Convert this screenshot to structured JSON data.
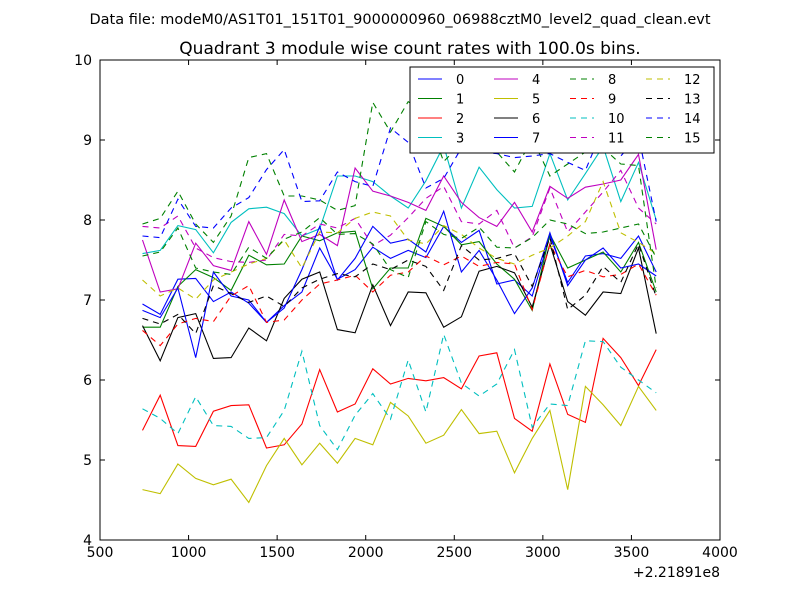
{
  "figure": {
    "suptitle": "Data file: modeM0/AS1T01_151T01_9000000960_06988cztM0_level2_quad_clean.evt"
  },
  "chart_data": {
    "type": "line",
    "title": "Quadrant 3 module wise count rates with 100.0s bins.",
    "xlabel": "",
    "ylabel": "",
    "x_offset_label": "+2.21891e8",
    "xlim": [
      500,
      4000
    ],
    "ylim": [
      4,
      10
    ],
    "xticks": [
      500,
      1000,
      1500,
      2000,
      2500,
      3000,
      3500,
      4000
    ],
    "yticks": [
      4,
      5,
      6,
      7,
      8,
      9,
      10
    ],
    "grid": false,
    "legend": {
      "placement": "top-right",
      "columns": 4
    },
    "x": [
      740,
      840,
      940,
      1040,
      1140,
      1240,
      1340,
      1440,
      1540,
      1640,
      1740,
      1840,
      1940,
      2040,
      2140,
      2240,
      2340,
      2440,
      2540,
      2640,
      2740,
      2840,
      2940,
      3040,
      3140,
      3240,
      3340,
      3440,
      3540,
      3640
    ],
    "series": [
      {
        "name": "0",
        "color": "#0000ff",
        "dash": "solid",
        "values": [
          6.95,
          6.82,
          7.26,
          7.27,
          6.98,
          7.1,
          6.96,
          6.72,
          6.93,
          7.1,
          7.65,
          7.26,
          7.38,
          7.66,
          7.52,
          7.62,
          7.53,
          7.92,
          7.72,
          7.87,
          7.2,
          7.25,
          7.05,
          7.8,
          7.22,
          7.55,
          7.58,
          7.52,
          7.8,
          7.35
        ]
      },
      {
        "name": "1",
        "color": "#008000",
        "dash": "solid",
        "values": [
          6.66,
          6.66,
          7.17,
          7.38,
          7.28,
          7.12,
          7.56,
          7.44,
          7.45,
          7.8,
          7.74,
          7.84,
          7.86,
          7.14,
          7.4,
          7.4,
          8.02,
          7.92,
          7.69,
          7.73,
          7.45,
          7.26,
          6.87,
          7.82,
          7.4,
          7.5,
          7.6,
          7.35,
          7.72,
          7.1
        ]
      },
      {
        "name": "2",
        "color": "#ff0000",
        "dash": "solid",
        "values": [
          5.37,
          5.81,
          5.18,
          5.17,
          5.61,
          5.68,
          5.69,
          5.15,
          5.19,
          5.45,
          6.13,
          5.6,
          5.7,
          6.14,
          5.95,
          6.02,
          5.99,
          6.03,
          5.89,
          6.3,
          6.34,
          5.52,
          5.36,
          6.2,
          5.57,
          5.47,
          6.52,
          6.28,
          5.93,
          6.38
        ]
      },
      {
        "name": "3",
        "color": "#00bfbf",
        "dash": "solid",
        "values": [
          7.58,
          7.62,
          7.93,
          7.88,
          7.59,
          7.97,
          8.14,
          8.16,
          8.08,
          7.8,
          7.89,
          8.55,
          8.55,
          8.48,
          8.3,
          8.15,
          8.49,
          8.93,
          8.15,
          8.66,
          8.38,
          8.15,
          8.17,
          8.83,
          8.25,
          8.58,
          8.92,
          8.23,
          8.72,
          8.0
        ]
      },
      {
        "name": "4",
        "color": "#bf00bf",
        "dash": "solid",
        "values": [
          7.75,
          7.1,
          7.14,
          7.71,
          7.43,
          7.37,
          7.98,
          7.57,
          8.25,
          7.73,
          7.82,
          7.68,
          8.65,
          8.36,
          8.3,
          8.22,
          8.12,
          8.55,
          8.22,
          8.03,
          7.92,
          8.22,
          7.85,
          8.42,
          8.27,
          8.41,
          8.45,
          8.5,
          8.82,
          7.63
        ]
      },
      {
        "name": "5",
        "color": "#bfbf00",
        "dash": "solid",
        "values": [
          4.63,
          4.58,
          4.95,
          4.77,
          4.69,
          4.76,
          4.47,
          4.93,
          5.27,
          4.94,
          5.21,
          4.96,
          5.27,
          5.19,
          5.72,
          5.55,
          5.21,
          5.31,
          5.63,
          5.33,
          5.36,
          4.84,
          5.27,
          5.62,
          4.63,
          5.92,
          5.69,
          5.43,
          5.92,
          5.62
        ]
      },
      {
        "name": "6",
        "color": "#000000",
        "dash": "solid",
        "values": [
          6.68,
          6.24,
          6.78,
          6.83,
          6.27,
          6.28,
          6.65,
          6.49,
          7.02,
          7.26,
          7.35,
          6.63,
          6.59,
          7.19,
          6.68,
          7.1,
          7.09,
          6.66,
          6.79,
          7.36,
          7.42,
          7.34,
          6.91,
          7.7,
          6.98,
          6.81,
          7.1,
          7.08,
          7.65,
          6.58
        ]
      },
      {
        "name": "7",
        "color": "#0000ff",
        "dash": "solid",
        "values": [
          6.87,
          6.78,
          7.15,
          6.28,
          7.35,
          7.05,
          7.0,
          6.72,
          6.9,
          7.38,
          7.92,
          7.25,
          7.52,
          7.92,
          7.71,
          7.76,
          7.6,
          8.11,
          7.35,
          7.62,
          7.25,
          6.83,
          7.15,
          7.84,
          7.18,
          7.5,
          7.65,
          7.4,
          7.45,
          7.3
        ]
      },
      {
        "name": "8",
        "color": "#008000",
        "dash": "dash",
        "values": [
          7.95,
          8.02,
          8.36,
          7.95,
          7.72,
          8.05,
          8.78,
          8.83,
          8.3,
          8.3,
          8.25,
          8.12,
          8.18,
          9.47,
          9.1,
          9.48,
          9.33,
          8.73,
          8.96,
          9.13,
          8.85,
          8.6,
          9.02,
          8.55,
          8.7,
          8.85,
          8.9,
          8.7,
          8.68,
          7.15
        ]
      },
      {
        "name": "9",
        "color": "#ff0000",
        "dash": "dash",
        "values": [
          6.62,
          6.43,
          6.7,
          6.77,
          6.73,
          7.05,
          7.18,
          6.72,
          6.75,
          7.0,
          7.2,
          7.25,
          7.31,
          7.1,
          7.31,
          7.35,
          7.55,
          7.44,
          7.55,
          7.42,
          7.47,
          7.45,
          6.88,
          7.7,
          7.29,
          7.37,
          7.29,
          7.32,
          7.45,
          7.06
        ]
      },
      {
        "name": "10",
        "color": "#00bfbf",
        "dash": "dash",
        "values": [
          5.64,
          5.52,
          5.33,
          5.79,
          5.43,
          5.42,
          5.27,
          5.28,
          5.62,
          6.36,
          5.43,
          5.13,
          5.56,
          5.83,
          5.51,
          6.25,
          5.6,
          6.57,
          5.96,
          5.8,
          5.95,
          6.38,
          5.41,
          5.7,
          5.68,
          6.49,
          6.48,
          6.16,
          6.0,
          5.84
        ]
      },
      {
        "name": "11",
        "color": "#bf00bf",
        "dash": "dash",
        "values": [
          7.92,
          7.9,
          8.05,
          7.65,
          7.53,
          7.48,
          7.47,
          7.5,
          7.82,
          7.8,
          7.95,
          7.9,
          8.02,
          7.68,
          7.81,
          8.03,
          8.27,
          8.42,
          7.98,
          7.95,
          8.12,
          7.65,
          7.79,
          8.4,
          7.85,
          8.1,
          8.35,
          8.62,
          8.15,
          7.95
        ]
      },
      {
        "name": "12",
        "color": "#bfbf00",
        "dash": "dash",
        "values": [
          7.25,
          7.05,
          7.15,
          7.01,
          7.25,
          7.35,
          7.45,
          7.52,
          7.75,
          7.4,
          7.85,
          7.84,
          8.02,
          8.1,
          8.05,
          7.75,
          7.7,
          7.93,
          7.82,
          7.65,
          7.52,
          7.45,
          7.56,
          7.65,
          7.8,
          7.98,
          8.48,
          7.84,
          7.72,
          7.58
        ]
      },
      {
        "name": "13",
        "color": "#000000",
        "dash": "dash",
        "values": [
          6.77,
          6.7,
          6.82,
          6.58,
          7.18,
          7.08,
          6.97,
          7.05,
          6.92,
          7.15,
          7.26,
          7.33,
          7.29,
          7.45,
          7.38,
          7.5,
          7.42,
          7.12,
          7.68,
          7.5,
          7.52,
          7.58,
          7.17,
          7.78,
          6.88,
          7.06,
          7.42,
          7.22,
          7.7,
          7.04
        ]
      },
      {
        "name": "14",
        "color": "#0000ff",
        "dash": "dash",
        "values": [
          7.8,
          7.78,
          8.26,
          7.92,
          7.9,
          8.15,
          8.28,
          8.63,
          8.88,
          8.23,
          8.24,
          8.6,
          8.48,
          8.42,
          9.15,
          8.97,
          8.4,
          8.52,
          8.9,
          8.85,
          8.83,
          8.78,
          8.8,
          8.83,
          8.72,
          8.62,
          9.15,
          8.8,
          9.05,
          7.98
        ]
      },
      {
        "name": "15",
        "color": "#008000",
        "dash": "dash",
        "values": [
          7.55,
          7.6,
          7.9,
          7.4,
          7.35,
          7.32,
          7.66,
          7.52,
          7.76,
          7.85,
          8.03,
          7.82,
          7.83,
          7.7,
          7.38,
          7.28,
          7.98,
          7.82,
          7.77,
          7.91,
          7.66,
          7.65,
          7.78,
          8.0,
          7.95,
          7.83,
          7.85,
          7.9,
          7.95,
          7.53
        ]
      }
    ]
  }
}
